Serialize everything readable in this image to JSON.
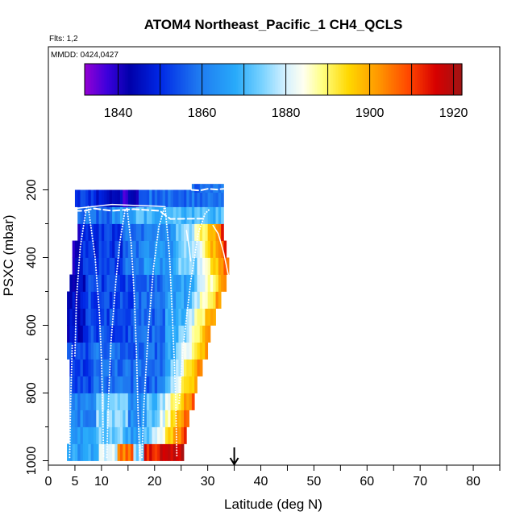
{
  "chart_data": {
    "type": "heatmap",
    "title": "ATOM4 Northeast_Pacific_1 CH4_QCLS",
    "flights_text": "Flts: 1,2",
    "dates_text": "MMDD: 0424,0427",
    "xlabel": "Latitude (deg N)",
    "ylabel": "PSXC (mbar)",
    "xlim": [
      0,
      85
    ],
    "ylim": [
      1000,
      140
    ],
    "x_ticks": [
      0,
      5,
      10,
      20,
      30,
      40,
      50,
      60,
      70,
      80
    ],
    "x_tick_labels": [
      "0",
      "5",
      "10",
      "20",
      "30",
      "40",
      "50",
      "60",
      "70",
      "80"
    ],
    "y_ticks": [
      200,
      400,
      600,
      800,
      1000
    ],
    "y_tick_labels": [
      "200",
      "400",
      "600",
      "800",
      "1000"
    ],
    "colorbar": {
      "min": 1832,
      "max": 1922,
      "ticks": [
        1840,
        1860,
        1880,
        1900,
        1920
      ],
      "tick_labels": [
        "1840",
        "1860",
        "1880",
        "1900",
        "1920"
      ]
    },
    "arrow_marker_latitude": 35,
    "lat_bins": [
      3.75,
      4.25,
      4.75,
      5.25,
      5.75,
      6.25,
      6.75,
      7.25,
      7.75,
      8.25,
      8.75,
      9.25,
      9.75,
      10.25,
      10.75,
      11.25,
      11.75,
      12.25,
      12.75,
      13.25,
      13.75,
      14.25,
      14.75,
      15.25,
      15.75,
      16.25,
      16.75,
      17.25,
      17.75,
      18.25,
      18.75,
      19.25,
      19.75,
      20.25,
      20.75,
      21.25,
      21.75,
      22.25,
      22.75,
      23.25,
      23.75,
      24.25,
      24.75,
      25.25,
      25.75,
      26.25,
      26.75,
      27.25,
      27.75,
      28.25,
      28.75,
      29.25,
      29.75,
      30.25,
      30.75,
      31.25,
      31.75,
      32.25,
      32.75,
      33.25,
      33.75,
      34.25
    ],
    "pressure_levels": [
      975,
      925,
      875,
      825,
      775,
      725,
      675,
      625,
      575,
      525,
      475,
      425,
      375,
      325,
      275,
      225,
      195
    ],
    "profile_lines": [
      {
        "style": "dotted",
        "points": [
          [
            4.0,
            990
          ],
          [
            4.2,
            820
          ],
          [
            4.5,
            660
          ]
        ]
      },
      {
        "style": "dotted",
        "points": [
          [
            5.0,
            690
          ],
          [
            5.3,
            520
          ],
          [
            6.0,
            370
          ],
          [
            7.2,
            250
          ]
        ]
      },
      {
        "style": "dotted",
        "points": [
          [
            7.5,
            250
          ],
          [
            8.8,
            400
          ],
          [
            9.6,
            560
          ],
          [
            10.0,
            700
          ],
          [
            10.2,
            830
          ],
          [
            10.4,
            990
          ]
        ]
      },
      {
        "style": "dotted",
        "points": [
          [
            11.0,
            990
          ],
          [
            11.3,
            830
          ],
          [
            11.8,
            650
          ],
          [
            12.7,
            470
          ],
          [
            13.5,
            350
          ],
          [
            14.5,
            255
          ]
        ]
      },
      {
        "style": "dotted",
        "points": [
          [
            14.8,
            255
          ],
          [
            15.6,
            360
          ],
          [
            16.2,
            520
          ],
          [
            16.6,
            690
          ],
          [
            16.9,
            860
          ],
          [
            17.2,
            990
          ]
        ]
      },
      {
        "style": "dotted",
        "points": [
          [
            17.6,
            990
          ],
          [
            18.0,
            830
          ],
          [
            18.8,
            620
          ],
          [
            19.8,
            430
          ],
          [
            20.8,
            310
          ],
          [
            21.8,
            255
          ]
        ]
      },
      {
        "style": "dotted",
        "points": [
          [
            22.0,
            255
          ],
          [
            22.8,
            390
          ],
          [
            23.3,
            560
          ],
          [
            23.7,
            700
          ],
          [
            24.0,
            830
          ],
          [
            24.2,
            990
          ]
        ]
      },
      {
        "style": "dotted",
        "points": [
          [
            24.6,
            830
          ],
          [
            25.4,
            660
          ],
          [
            26.8,
            470
          ],
          [
            28.2,
            330
          ],
          [
            29.5,
            270
          ],
          [
            30.5,
            255
          ]
        ]
      },
      {
        "style": "solid",
        "points": [
          [
            5.0,
            255
          ],
          [
            8.0,
            250
          ],
          [
            12.0,
            243
          ],
          [
            16.0,
            246
          ],
          [
            20.5,
            248
          ],
          [
            22.0,
            250
          ]
        ]
      },
      {
        "style": "dashed",
        "points": [
          [
            5.0,
            262
          ],
          [
            7.0,
            262
          ],
          [
            8.5,
            255
          ],
          [
            12.0,
            262
          ],
          [
            16.0,
            257
          ],
          [
            21.0,
            262
          ],
          [
            22.0,
            275
          ],
          [
            23.0,
            286
          ],
          [
            29.0,
            285
          ]
        ]
      },
      {
        "style": "dashed",
        "points": [
          [
            27.0,
            200
          ],
          [
            28.5,
            202
          ],
          [
            30.0,
            197
          ],
          [
            31.8,
            199
          ],
          [
            33.0,
            197
          ]
        ]
      },
      {
        "style": "solid",
        "points": [
          [
            31.0,
            305
          ],
          [
            32.0,
            330
          ],
          [
            33.0,
            385
          ],
          [
            34.0,
            460
          ]
        ]
      },
      {
        "style": "solid",
        "points": [
          [
            26.0,
            320
          ],
          [
            26.5,
            370
          ],
          [
            26.8,
            410
          ]
        ]
      }
    ]
  }
}
